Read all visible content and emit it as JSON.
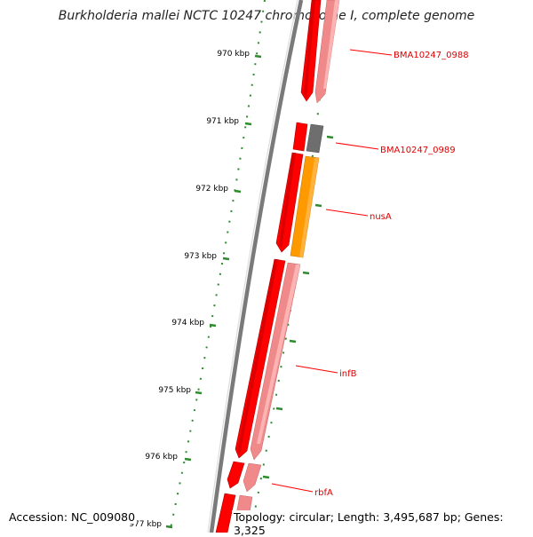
{
  "title": "Burkholderia mallei NCTC 10247 chromosome I, complete genome",
  "footer": {
    "accession": "Accession: NC_009080",
    "topology": "Topology: circular; Length: 3,495,687 bp; Genes: 3,325"
  },
  "ruler": {
    "ticks": [
      "970 kbp",
      "971 kbp",
      "972 kbp",
      "973 kbp",
      "974 kbp",
      "975 kbp",
      "976 kbp",
      "977 kbp"
    ],
    "tick_color": "#2e8b2e"
  },
  "features": [
    {
      "label": "BMA10247_0988",
      "color": "#ff0000"
    },
    {
      "label": "BMA10247_0989",
      "color": "#ff0000"
    },
    {
      "label": "nusA",
      "color": "#ff0000"
    },
    {
      "label": "infB",
      "color": "#ff0000"
    },
    {
      "label": "rbfA",
      "color": "#ff0000"
    }
  ],
  "colors": {
    "backbone": "#7a7a7a",
    "cds": "#ff0000",
    "gene": "#f08a8a",
    "misc": "#6e6e6e",
    "orange": "#ff9900",
    "gc_ticks": "#2e8b2e"
  }
}
